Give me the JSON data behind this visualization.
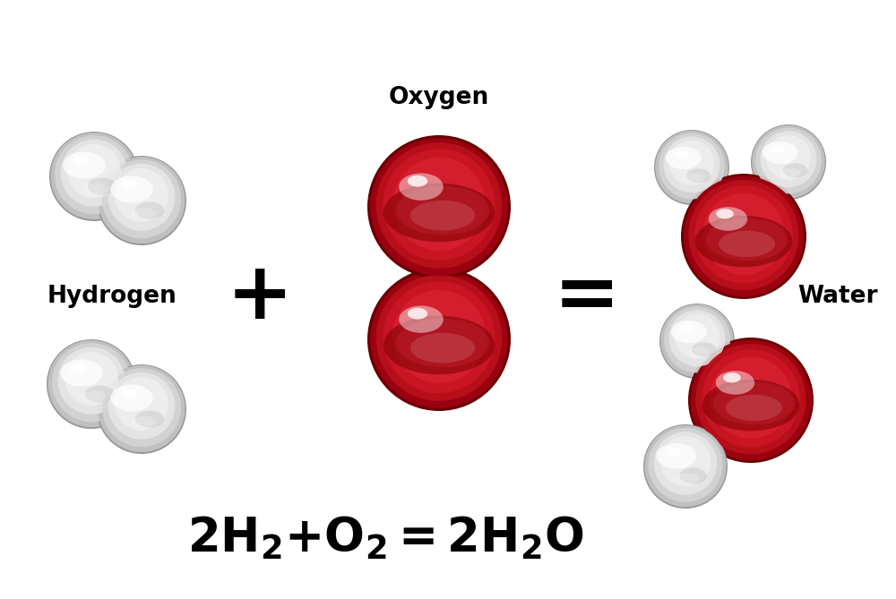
{
  "background_color": "#ffffff",
  "label_hydrogen": "Hydrogen",
  "label_oxygen": "Oxygen",
  "label_water": "Water",
  "plus_sign": "+",
  "equals_sign": "=",
  "equation_fontsize": 38,
  "label_fontsize": 19,
  "operator_fontsize": 64,
  "figsize": [
    10.0,
    6.69
  ],
  "dpi": 100,
  "h_sphere_color_dark": "#aaaaaa",
  "h_sphere_color_mid": "#d8d8d8",
  "h_sphere_color_light": "#f5f5f5",
  "o_sphere_color_dark": "#7a0000",
  "o_sphere_color_mid": "#c01020",
  "o_sphere_color_light": "#e03050"
}
